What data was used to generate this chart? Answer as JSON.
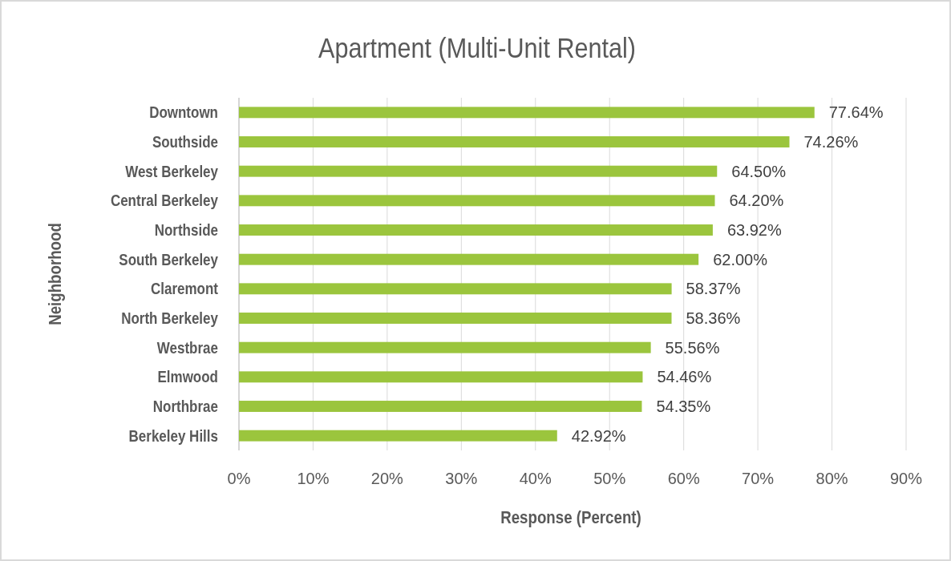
{
  "chart_data": {
    "type": "bar",
    "orientation": "horizontal",
    "title": "Apartment (Multi-Unit Rental)",
    "xlabel": "Response (Percent)",
    "ylabel": "Neighborhood",
    "categories": [
      "Downtown",
      "Southside",
      "West Berkeley",
      "Central Berkeley",
      "Northside",
      "South Berkeley",
      "Claremont",
      "North Berkeley",
      "Westbrae",
      "Elmwood",
      "Northbrae",
      "Berkeley Hills"
    ],
    "values": [
      77.64,
      74.26,
      64.5,
      64.2,
      63.92,
      62.0,
      58.37,
      58.36,
      55.56,
      54.46,
      54.35,
      42.92
    ],
    "value_labels": [
      "77.64%",
      "74.26%",
      "64.50%",
      "64.20%",
      "63.92%",
      "62.00%",
      "58.37%",
      "58.36%",
      "55.56%",
      "54.46%",
      "54.35%",
      "42.92%"
    ],
    "color": "#9bc53d",
    "xlim": [
      0,
      90
    ],
    "xticks": [
      {
        "value": 0,
        "label": "0%"
      },
      {
        "value": 10,
        "label": "10%"
      },
      {
        "value": 20,
        "label": "20%"
      },
      {
        "value": 30,
        "label": "30%"
      },
      {
        "value": 40,
        "label": "40%"
      },
      {
        "value": 50,
        "label": "50%"
      },
      {
        "value": 60,
        "label": "60%"
      },
      {
        "value": 70,
        "label": "70%"
      },
      {
        "value": 80,
        "label": "80%"
      },
      {
        "value": 90,
        "label": "90%"
      }
    ],
    "grid": "x"
  }
}
